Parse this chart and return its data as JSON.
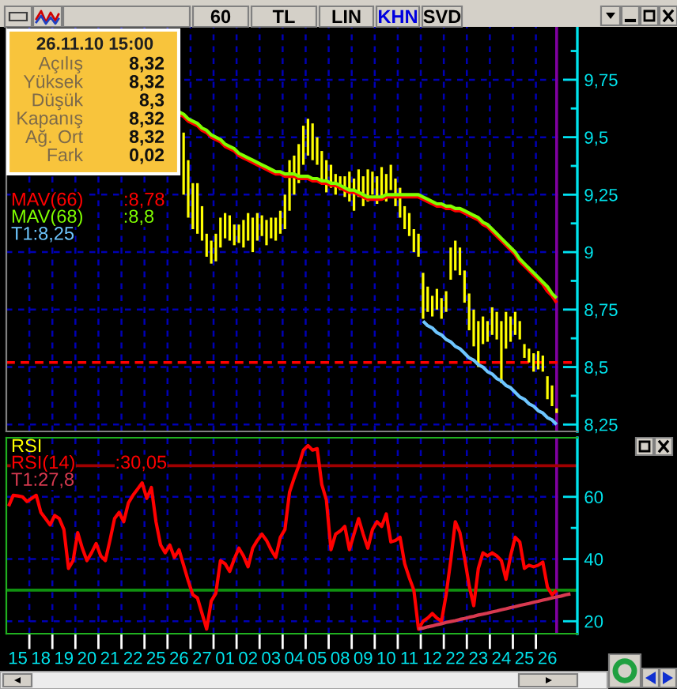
{
  "chart_data": [
    {
      "type": "bar",
      "annotations": [
        "60",
        "TL",
        "LIN",
        "KHN",
        "SVD",
        "26.11.10 15:00",
        "Açılış",
        "8,32",
        "Yüksek",
        "8,32",
        "Düşük",
        "8,3",
        "Kapanış",
        "8,32",
        "Ağ. Ort",
        "8,32",
        "Fark",
        "0,02",
        ":8,78",
        ":8,8"
      ],
      "categories": [
        null,
        null,
        "15",
        null,
        null,
        null,
        null,
        "18",
        null,
        null,
        null,
        null,
        "19",
        null,
        null,
        null,
        null,
        "20",
        null,
        null,
        null,
        null,
        "21",
        null,
        null,
        null,
        null,
        "22",
        null,
        null,
        null,
        null,
        "25",
        null,
        null,
        null,
        null,
        "26",
        null,
        null,
        null,
        null,
        "27",
        null,
        null,
        null,
        null,
        "01",
        null,
        null,
        null,
        null,
        "02",
        null,
        null,
        null,
        null,
        "03",
        null,
        null,
        null,
        null,
        "04",
        null,
        null,
        null,
        null,
        "05",
        null,
        null,
        null,
        null,
        "08",
        null,
        null,
        null,
        null,
        "09",
        null,
        null,
        null,
        null,
        "10",
        null,
        null,
        null,
        null,
        "11",
        null,
        null,
        null,
        null,
        "12",
        null,
        null,
        null,
        null,
        "22",
        null,
        null,
        null,
        null,
        "23",
        null,
        null,
        null,
        null,
        "24",
        null,
        null,
        null,
        null,
        "25",
        null,
        null,
        null,
        null,
        "26",
        null,
        null,
        null,
        null,
        null,
        null
      ],
      "series": [
        {
          "color": "#ffff00",
          "base": [
            null,
            null,
            null,
            null,
            null,
            null,
            null,
            null,
            null,
            null,
            null,
            null,
            null,
            null,
            null,
            null,
            null,
            null,
            null,
            null,
            null,
            null,
            null,
            null,
            null,
            null,
            null,
            null,
            null,
            null,
            null,
            null,
            null,
            null,
            null,
            null,
            null,
            null,
            9.25,
            9.15,
            9.1,
            9.08,
            9.05,
            8.98,
            8.95,
            8.96,
            9.02,
            9.06,
            9.05,
            9.03,
            9.04,
            9.02,
            9.05,
            9.0,
            9.05,
            9.07,
            9.03,
            9.06,
            9.05,
            9.08,
            9.1,
            9.18,
            9.25,
            9.3,
            9.38,
            9.42,
            9.4,
            9.38,
            9.3,
            9.26,
            9.28,
            9.25,
            9.27,
            9.24,
            9.22,
            9.18,
            9.24,
            9.2,
            9.22,
            9.25,
            9.21,
            9.24,
            9.22,
            9.27,
            9.2,
            9.15,
            9.1,
            9.07,
            9.0,
            8.98,
            8.71,
            8.74,
            8.72,
            8.75,
            8.71,
            8.74,
            8.88,
            8.92,
            8.9,
            8.78,
            8.66,
            8.59,
            8.5,
            8.6,
            8.61,
            8.64,
            8.62,
            8.43,
            8.58,
            8.61,
            8.64,
            8.62,
            8.54,
            8.52,
            8.48,
            8.49,
            8.48,
            8.36,
            8.33,
            8.3,
            null,
            null,
            null,
            null
          ],
          "values": [
            null,
            null,
            null,
            null,
            null,
            null,
            null,
            null,
            null,
            null,
            null,
            null,
            null,
            null,
            null,
            null,
            null,
            null,
            null,
            null,
            null,
            null,
            null,
            null,
            null,
            null,
            null,
            null,
            null,
            null,
            null,
            null,
            null,
            null,
            null,
            null,
            null,
            null,
            0.27,
            0.25,
            0.2,
            0.22,
            0.15,
            0.1,
            0.1,
            0.12,
            0.13,
            0.11,
            0.11,
            0.09,
            0.08,
            0.12,
            0.12,
            0.15,
            0.12,
            0.09,
            0.11,
            0.09,
            0.1,
            0.1,
            0.15,
            0.22,
            0.17,
            0.17,
            0.17,
            0.16,
            0.16,
            0.12,
            0.14,
            0.14,
            0.1,
            0.09,
            0.06,
            0.09,
            0.13,
            0.14,
            0.12,
            0.13,
            0.14,
            0.1,
            0.12,
            0.13,
            0.12,
            0.11,
            0.12,
            0.13,
            0.1,
            0.1,
            0.1,
            0.1,
            0.2,
            0.11,
            0.09,
            0.09,
            0.09,
            0.09,
            0.14,
            0.13,
            0.12,
            0.14,
            0.16,
            0.16,
            0.2,
            0.12,
            0.09,
            0.12,
            0.12,
            0.27,
            0.16,
            0.11,
            0.1,
            0.08,
            0.06,
            0.06,
            0.08,
            0.08,
            0.07,
            0.1,
            0.09,
            0.02,
            null,
            null,
            null,
            null
          ]
        },
        {
          "type": "line",
          "name": "MAV(66)",
          "color": "#ff0000",
          "values": [
            null,
            null,
            null,
            null,
            null,
            null,
            null,
            null,
            null,
            null,
            null,
            null,
            null,
            null,
            null,
            null,
            null,
            null,
            null,
            null,
            null,
            null,
            null,
            null,
            null,
            null,
            null,
            null,
            null,
            null,
            null,
            null,
            null,
            null,
            null,
            null,
            null,
            9.6,
            9.59,
            9.57,
            9.56,
            9.55,
            9.53,
            9.52,
            9.5,
            9.49,
            9.48,
            9.46,
            9.45,
            9.44,
            9.42,
            9.41,
            9.4,
            9.39,
            9.38,
            9.37,
            9.36,
            9.35,
            9.34,
            9.34,
            9.33,
            9.33,
            9.33,
            9.32,
            9.32,
            9.32,
            9.31,
            9.31,
            9.3,
            9.3,
            9.29,
            9.29,
            9.28,
            9.27,
            9.26,
            9.26,
            9.25,
            9.24,
            9.23,
            9.23,
            9.23,
            9.23,
            9.24,
            9.24,
            9.24,
            9.24,
            9.24,
            9.24,
            9.24,
            9.24,
            9.23,
            9.22,
            9.21,
            9.2,
            9.2,
            9.19,
            9.19,
            9.18,
            9.18,
            9.17,
            9.16,
            9.15,
            9.14,
            9.12,
            9.11,
            9.09,
            9.07,
            9.05,
            9.03,
            9.01,
            8.99,
            8.96,
            8.94,
            8.92,
            8.9,
            8.88,
            8.86,
            8.83,
            8.81,
            8.78,
            null,
            null,
            null,
            null
          ]
        },
        {
          "type": "line",
          "name": "MAV(68)",
          "color": "#80ff00",
          "values": [
            null,
            null,
            null,
            null,
            null,
            null,
            null,
            null,
            null,
            null,
            null,
            null,
            null,
            null,
            null,
            null,
            null,
            null,
            null,
            null,
            null,
            null,
            null,
            null,
            null,
            null,
            null,
            null,
            null,
            null,
            null,
            null,
            null,
            null,
            null,
            null,
            null,
            9.61,
            9.6,
            9.58,
            9.57,
            9.56,
            9.54,
            9.53,
            9.51,
            9.5,
            9.49,
            9.47,
            9.46,
            9.45,
            9.43,
            9.42,
            9.41,
            9.4,
            9.39,
            9.38,
            9.37,
            9.36,
            9.35,
            9.35,
            9.34,
            9.34,
            9.34,
            9.33,
            9.33,
            9.33,
            9.32,
            9.32,
            9.31,
            9.31,
            9.3,
            9.3,
            9.29,
            9.28,
            9.27,
            9.27,
            9.26,
            9.25,
            9.24,
            9.24,
            9.24,
            9.24,
            9.25,
            9.25,
            9.25,
            9.25,
            9.25,
            9.25,
            9.25,
            9.25,
            9.24,
            9.23,
            9.22,
            9.21,
            9.21,
            9.2,
            9.2,
            9.19,
            9.19,
            9.18,
            9.17,
            9.16,
            9.15,
            9.13,
            9.12,
            9.1,
            9.08,
            9.06,
            9.04,
            9.02,
            9.0,
            8.97,
            8.95,
            8.93,
            8.91,
            8.89,
            8.87,
            8.85,
            8.82,
            8.8,
            null,
            null,
            null,
            null
          ]
        },
        {
          "type": "line",
          "name": "T1:8,25",
          "color": "#6ec6ff",
          "values": [
            null,
            null,
            null,
            null,
            null,
            null,
            null,
            null,
            null,
            null,
            null,
            null,
            null,
            null,
            null,
            null,
            null,
            null,
            null,
            null,
            null,
            null,
            null,
            null,
            null,
            null,
            null,
            null,
            null,
            null,
            null,
            null,
            null,
            null,
            null,
            null,
            null,
            null,
            null,
            null,
            null,
            null,
            null,
            null,
            null,
            null,
            null,
            null,
            null,
            null,
            null,
            null,
            null,
            null,
            null,
            null,
            null,
            null,
            null,
            null,
            null,
            null,
            null,
            null,
            null,
            null,
            null,
            null,
            null,
            null,
            null,
            null,
            null,
            null,
            null,
            null,
            null,
            null,
            null,
            null,
            null,
            null,
            null,
            null,
            null,
            null,
            null,
            null,
            null,
            null,
            8.7,
            8.68,
            8.67,
            8.65,
            8.64,
            8.62,
            8.61,
            8.59,
            8.58,
            8.56,
            8.54,
            8.53,
            8.51,
            8.5,
            8.48,
            8.47,
            8.45,
            8.44,
            8.42,
            8.41,
            8.39,
            8.37,
            8.36,
            8.34,
            8.33,
            8.31,
            8.3,
            8.28,
            8.27,
            8.25,
            null,
            null,
            null,
            null
          ]
        }
      ],
      "ylim": [
        8.22,
        9.98
      ],
      "yticks": [
        {
          "value": 8.25,
          "label": "8,25"
        },
        {
          "value": 8.375,
          "label": null
        },
        {
          "value": 8.5,
          "label": "8,5"
        },
        {
          "value": 8.625,
          "label": null
        },
        {
          "value": 8.75,
          "label": "8,75"
        },
        {
          "value": 8.875,
          "label": null
        },
        9,
        {
          "value": 9.125,
          "label": null
        },
        {
          "value": 9.25,
          "label": "9,25"
        },
        {
          "value": 9.375,
          "label": null
        },
        {
          "value": 9.5,
          "label": "9,5"
        },
        {
          "value": 9.625,
          "label": null
        },
        {
          "value": 9.75,
          "label": "9,75"
        },
        {
          "value": 9.875,
          "label": null
        }
      ],
      "ref_lines": [
        {
          "axis": "y",
          "value": 8.52,
          "color": "#ff0000",
          "line_style": "dashed"
        }
      ],
      "grid": true,
      "legend": "left",
      "tick_labels": "y"
    },
    {
      "type": "line",
      "title": "RSI",
      "annotations": [
        ":30,05"
      ],
      "categories": [
        null,
        null,
        "15",
        null,
        null,
        null,
        null,
        "18",
        null,
        null,
        null,
        null,
        "19",
        null,
        null,
        null,
        null,
        "20",
        null,
        null,
        null,
        null,
        "21",
        null,
        null,
        null,
        null,
        "22",
        null,
        null,
        null,
        null,
        "25",
        null,
        null,
        null,
        null,
        "26",
        null,
        null,
        null,
        null,
        "27",
        null,
        null,
        null,
        null,
        "01",
        null,
        null,
        null,
        null,
        "02",
        null,
        null,
        null,
        null,
        "03",
        null,
        null,
        null,
        null,
        "04",
        null,
        null,
        null,
        null,
        "05",
        null,
        null,
        null,
        null,
        "08",
        null,
        null,
        null,
        null,
        "09",
        null,
        null,
        null,
        null,
        "10",
        null,
        null,
        null,
        null,
        "11",
        null,
        null,
        null,
        null,
        "12",
        null,
        null,
        null,
        null,
        "22",
        null,
        null,
        null,
        null,
        "23",
        null,
        null,
        null,
        null,
        "24",
        null,
        null,
        null,
        null,
        "25",
        null,
        null,
        null,
        null,
        "26",
        null,
        null,
        null,
        null,
        null,
        null
      ],
      "series": [
        {
          "name": "RSI(14)",
          "color": "#ff0000",
          "values": [
            57,
            60.5,
            60.3,
            60,
            58.5,
            59.5,
            60.5,
            55,
            53,
            51,
            54,
            53,
            49.5,
            37,
            39.5,
            48.5,
            43.5,
            39.5,
            42,
            45,
            41,
            39.5,
            46,
            53,
            55,
            52,
            58,
            60.5,
            62.5,
            64.5,
            59.5,
            63,
            52,
            44.5,
            42,
            44.5,
            40.5,
            43,
            38,
            33,
            28.5,
            27.5,
            22.5,
            17.5,
            26.5,
            29,
            39.5,
            38.5,
            36,
            40,
            43.5,
            41,
            37.5,
            43.5,
            46,
            48,
            46,
            43,
            40.5,
            47,
            49.5,
            61.5,
            66,
            70,
            75,
            76.5,
            75,
            75.5,
            64,
            59,
            43,
            48,
            49,
            50.5,
            43,
            48,
            53,
            48,
            43.5,
            49.5,
            52,
            50.5,
            54.5,
            45.5,
            46,
            47,
            38.5,
            34,
            30,
            17.5,
            20,
            21,
            22.5,
            21,
            20,
            28.5,
            39.5,
            52,
            48.5,
            40.5,
            31.5,
            25,
            37,
            42,
            41,
            42,
            41,
            39.5,
            33.5,
            41,
            47,
            45.5,
            37,
            38,
            37.5,
            38,
            39,
            31,
            28.5,
            30.05,
            null,
            null,
            null,
            null
          ]
        },
        {
          "name": "T1:27,8",
          "color": "#d83a50",
          "values": [
            null,
            null,
            null,
            null,
            null,
            null,
            null,
            null,
            null,
            null,
            null,
            null,
            null,
            null,
            null,
            null,
            null,
            null,
            null,
            null,
            null,
            null,
            null,
            null,
            null,
            null,
            null,
            null,
            null,
            null,
            null,
            null,
            null,
            null,
            null,
            null,
            null,
            null,
            null,
            null,
            null,
            null,
            null,
            null,
            null,
            null,
            null,
            null,
            null,
            null,
            null,
            null,
            null,
            null,
            null,
            null,
            null,
            null,
            null,
            null,
            null,
            null,
            null,
            null,
            null,
            null,
            null,
            null,
            null,
            null,
            null,
            null,
            null,
            null,
            null,
            null,
            null,
            null,
            null,
            null,
            null,
            null,
            null,
            null,
            null,
            null,
            null,
            null,
            null,
            17.5,
            17.8,
            18.2,
            18.5,
            18.9,
            19.2,
            19.6,
            19.9,
            20.2,
            20.6,
            20.9,
            21.3,
            21.6,
            22.0,
            22.3,
            22.6,
            23.0,
            23.3,
            23.7,
            24.0,
            24.4,
            24.7,
            25.1,
            25.4,
            25.7,
            26.1,
            26.4,
            26.8,
            27.1,
            27.5,
            27.8,
            28.1,
            28.5,
            28.8,
            null
          ]
        }
      ],
      "ylim": [
        16,
        79
      ],
      "yticks": [
        20,
        {
          "value": 30,
          "label": null
        },
        40,
        {
          "value": 50,
          "label": null
        },
        60,
        {
          "value": 70,
          "label": null
        }
      ],
      "ref_lines": [
        {
          "axis": "y",
          "value": 70,
          "color": "#a00000"
        },
        {
          "axis": "y",
          "value": 30,
          "color": "#109010"
        }
      ],
      "grid": true,
      "legend": "top left"
    }
  ]
}
